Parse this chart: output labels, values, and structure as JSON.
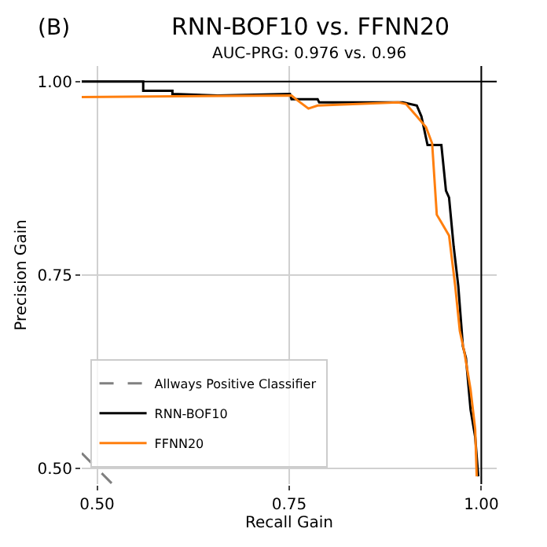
{
  "chart_data": {
    "type": "line",
    "title": "RNN-BOF10 vs. FFNN20",
    "subtitle": "AUC-PRG: 0.976 vs. 0.96",
    "xlabel": "Recall Gain",
    "ylabel": "Precision Gain",
    "annotations": [
      "(B)"
    ],
    "xlim": [
      0.48,
      1.02
    ],
    "ylim": [
      0.48,
      1.02
    ],
    "xticks": [
      {
        "value": 0.5,
        "label": "0.50"
      },
      0.75,
      {
        "value": 1.0,
        "label": "1.00"
      }
    ],
    "yticks": [
      {
        "value": 0.5,
        "label": "0.50"
      },
      0.75,
      {
        "value": 1.0,
        "label": "1.00"
      }
    ],
    "grid": true,
    "legend": "bottom left",
    "series": [
      {
        "color": "#000000",
        "x": [
          1.0,
          1.0
        ],
        "values": [
          0.48,
          1.02
        ]
      },
      {
        "color": "#000000",
        "x": [
          0.48,
          1.02
        ],
        "values": [
          1.0,
          1.0
        ]
      },
      {
        "name": "Allways Positive Classifier",
        "color": "#808080",
        "line_style": "dashed",
        "x": [
          0.48,
          0.52
        ],
        "values": [
          0.52,
          0.48
        ]
      },
      {
        "name": "RNN-BOF10",
        "color": "#000000",
        "x": [
          0.48,
          0.56,
          0.56,
          0.598,
          0.598,
          0.657,
          0.751,
          0.753,
          0.787,
          0.789,
          0.898,
          0.916,
          0.922,
          0.93,
          0.948,
          0.954,
          0.958,
          0.964,
          0.97,
          0.976,
          0.98,
          0.986,
          0.992,
          0.996
        ],
        "values": [
          1.0,
          1.0,
          0.988,
          0.988,
          0.984,
          0.982,
          0.984,
          0.977,
          0.977,
          0.973,
          0.973,
          0.969,
          0.955,
          0.918,
          0.918,
          0.859,
          0.85,
          0.787,
          0.736,
          0.658,
          0.643,
          0.576,
          0.541,
          0.49
        ]
      },
      {
        "name": "FFNN20",
        "color": "#ff7f0e",
        "x": [
          0.48,
          0.753,
          0.759,
          0.775,
          0.787,
          0.892,
          0.902,
          0.916,
          0.928,
          0.936,
          0.942,
          0.948,
          0.958,
          0.966,
          0.972,
          0.978,
          0.986,
          0.992,
          0.994
        ],
        "values": [
          0.98,
          0.982,
          0.977,
          0.965,
          0.969,
          0.973,
          0.971,
          0.955,
          0.941,
          0.92,
          0.828,
          0.818,
          0.801,
          0.736,
          0.678,
          0.65,
          0.602,
          0.551,
          0.49
        ]
      }
    ]
  }
}
